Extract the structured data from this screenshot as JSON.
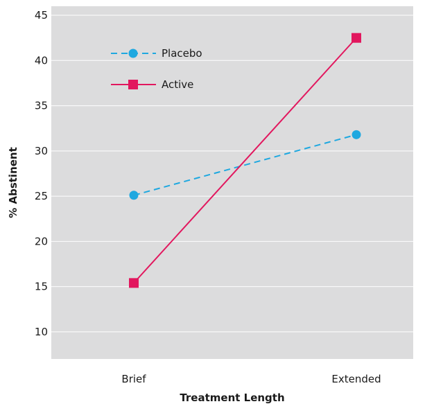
{
  "chart_data": {
    "type": "line",
    "title": "",
    "xlabel": "Treatment Length",
    "ylabel": "% Abstinent",
    "categories": [
      "Brief",
      "Extended"
    ],
    "ylim": [
      7,
      46
    ],
    "yticks": [
      10,
      15,
      20,
      25,
      30,
      35,
      40,
      45
    ],
    "grid": true,
    "legend_position": "top-left",
    "series": [
      {
        "name": "Placebo",
        "values": [
          25.1,
          31.8
        ],
        "color": "#1ea8e0",
        "marker": "circle",
        "line_style": "dashed"
      },
      {
        "name": "Active",
        "values": [
          15.4,
          42.5
        ],
        "color": "#e2175e",
        "marker": "square",
        "line_style": "solid"
      }
    ],
    "plot_background": "#dcdcdd",
    "grid_color": "#ffffff"
  }
}
